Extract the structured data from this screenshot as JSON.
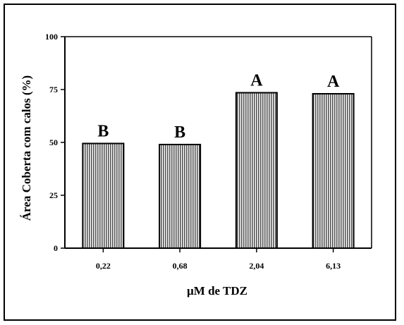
{
  "chart_data": {
    "type": "bar",
    "categories": [
      "0,22",
      "0,68",
      "2,04",
      "6,13"
    ],
    "values": [
      49.5,
      49,
      73.5,
      73
    ],
    "significance_letters": [
      "B",
      "B",
      "A",
      "A"
    ],
    "yticks": [
      "0",
      "25",
      "50",
      "75",
      "100"
    ],
    "ylim": [
      0,
      100
    ],
    "xlabel": "µM de TDZ",
    "ylabel": "Área Coberta com calos (%)",
    "title": "",
    "grid": false,
    "legend": "none",
    "bar_fill": "#9a9a9a"
  }
}
